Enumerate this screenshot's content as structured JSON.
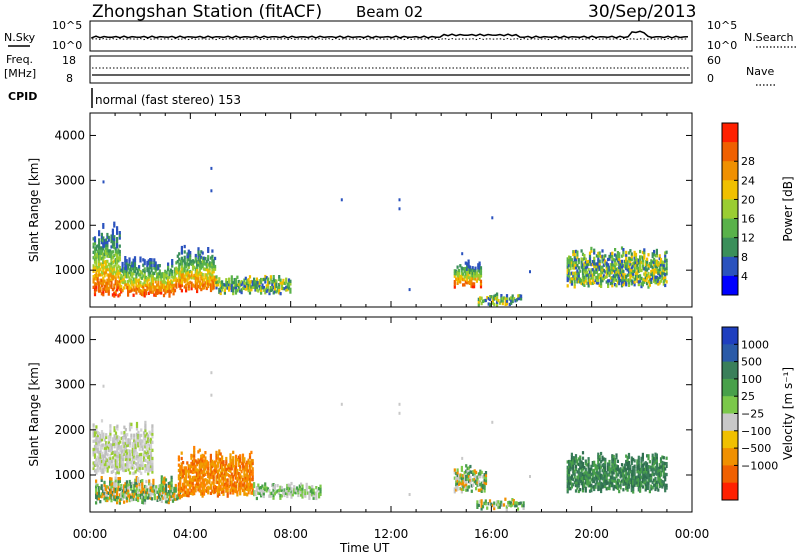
{
  "header": {
    "station": "Zhongshan Station (fitACF)",
    "beam": "Beam 02",
    "date": "30/Sep/2013"
  },
  "top_panels": {
    "nsky_label": "N.Sky",
    "nsearch_label": "N.Search",
    "freq_label_line1": "Freq.",
    "freq_label_line2": "[MHz]",
    "nave_label": "Nave",
    "cpid_label": "CPID",
    "cpid_text": "normal (fast stereo) 153",
    "left_ticks_top": [
      "10^5",
      "10^0"
    ],
    "right_ticks_top": [
      "10^5",
      "10^0"
    ],
    "left_ticks_freq": [
      "18",
      "8"
    ],
    "right_ticks_nave": [
      "60",
      "0"
    ]
  },
  "chart_data": [
    {
      "type": "heatmap",
      "title": "Power",
      "ylabel": "Slant Range [km]",
      "xlabel": "Time UT",
      "ylim": [
        180,
        4500
      ],
      "yticks": [
        1000,
        2000,
        3000,
        4000
      ],
      "xticks": [
        "00:00",
        "04:00",
        "08:00",
        "12:00",
        "16:00",
        "20:00",
        "00:00"
      ],
      "colorbar": {
        "label": "Power [dB]",
        "ticks": [
          "4",
          "8",
          "12",
          "16",
          "20",
          "24",
          "28"
        ],
        "colors": [
          "#0000ff",
          "#2a52be",
          "#3a8f5a",
          "#59b24a",
          "#9acd32",
          "#f0c000",
          "#f09000",
          "#f06000",
          "#ff2000"
        ]
      },
      "regions": [
        {
          "t0": 0.1,
          "t1": 1.2,
          "r0": 400,
          "r1": 2100,
          "level": "mixed"
        },
        {
          "t0": 1.2,
          "t1": 3.4,
          "r0": 400,
          "r1": 1300,
          "level": "mixed"
        },
        {
          "t0": 3.4,
          "t1": 5.0,
          "r0": 500,
          "r1": 1600,
          "level": "mixed"
        },
        {
          "t0": 5.0,
          "t1": 8.0,
          "r0": 450,
          "r1": 900,
          "level": "low"
        },
        {
          "t0": 14.5,
          "t1": 15.6,
          "r0": 600,
          "r1": 1200,
          "level": "mixed"
        },
        {
          "t0": 15.4,
          "t1": 17.2,
          "r0": 200,
          "r1": 450,
          "level": "low"
        },
        {
          "t0": 19.0,
          "t1": 23.0,
          "r0": 600,
          "r1": 1500,
          "level": "low"
        }
      ]
    },
    {
      "type": "heatmap",
      "title": "Velocity",
      "ylabel": "Slant Range [km]",
      "xlabel": "Time UT",
      "ylim": [
        180,
        4500
      ],
      "yticks": [
        1000,
        2000,
        3000,
        4000
      ],
      "xticks": [
        "00:00",
        "04:00",
        "08:00",
        "12:00",
        "16:00",
        "20:00",
        "00:00"
      ],
      "colorbar": {
        "label": "Velocity [m s⁻¹]",
        "ticks": [
          "1000",
          "500",
          "100",
          "25",
          "−25",
          "−100",
          "−500",
          "−1000"
        ],
        "colors": [
          "#1f3fbf",
          "#2a5aa8",
          "#3a7f5a",
          "#48a04a",
          "#7bc84a",
          "#c8c8c8",
          "#f0c000",
          "#f09000",
          "#f06000",
          "#ff2000"
        ]
      },
      "regions": [
        {
          "t0": 0.1,
          "t1": 2.5,
          "r0": 1000,
          "r1": 2200,
          "level": "grey"
        },
        {
          "t0": 0.2,
          "t1": 3.6,
          "r0": 350,
          "r1": 950,
          "level": "green"
        },
        {
          "t0": 3.5,
          "t1": 6.5,
          "r0": 500,
          "r1": 1600,
          "level": "orange"
        },
        {
          "t0": 6.5,
          "t1": 9.2,
          "r0": 450,
          "r1": 800,
          "level": "greygreen"
        },
        {
          "t0": 14.5,
          "t1": 15.8,
          "r0": 600,
          "r1": 1200,
          "level": "green"
        },
        {
          "t0": 15.4,
          "t1": 17.3,
          "r0": 200,
          "r1": 450,
          "level": "green"
        },
        {
          "t0": 19.0,
          "t1": 23.0,
          "r0": 600,
          "r1": 1500,
          "level": "darkgreen"
        }
      ]
    }
  ]
}
